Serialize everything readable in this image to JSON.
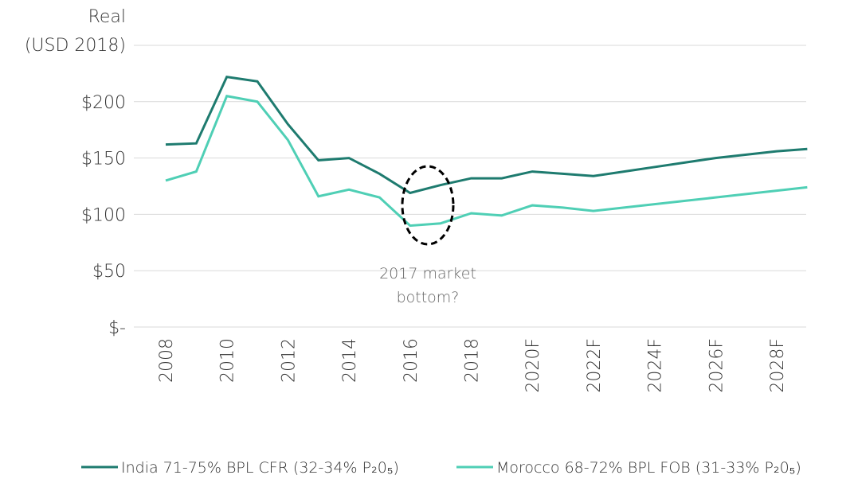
{
  "chart_data": {
    "type": "line",
    "y_label": [
      "Real",
      "(USD 2018)"
    ],
    "annotation": [
      "2017 market",
      "bottom?"
    ],
    "categories": [
      "2008",
      null,
      "2010",
      null,
      "2012",
      null,
      "2014",
      null,
      "2016",
      null,
      "2018",
      null,
      "2020F",
      null,
      "2022F",
      null,
      "2024F",
      null,
      "2026F",
      null,
      "2028F",
      null
    ],
    "series": [
      {
        "name": "India 71-75% BPL CFR (32-34% P₂0₅)",
        "color": "#1e7b6f",
        "values": [
          162,
          163,
          222,
          218,
          180,
          148,
          150,
          136,
          119,
          126,
          132,
          132,
          138,
          136,
          134,
          138,
          142,
          146,
          150,
          153,
          156,
          158
        ]
      },
      {
        "name": "Morocco 68-72% BPL FOB (31-33% P₂0₅)",
        "color": "#4fcfb5",
        "values": [
          130,
          138,
          205,
          200,
          166,
          116,
          122,
          115,
          90,
          92,
          101,
          99,
          108,
          106,
          103,
          106,
          109,
          112,
          115,
          118,
          121,
          124
        ]
      }
    ],
    "ylim": [
      0,
      250
    ],
    "yticks": [
      {
        "value": 0,
        "label": "$-"
      },
      {
        "value": 50,
        "label": "$50"
      },
      {
        "value": 100,
        "label": "$100"
      },
      {
        "value": 150,
        "label": "$150"
      },
      {
        "value": 200,
        "label": "$200"
      }
    ],
    "grid": true
  }
}
